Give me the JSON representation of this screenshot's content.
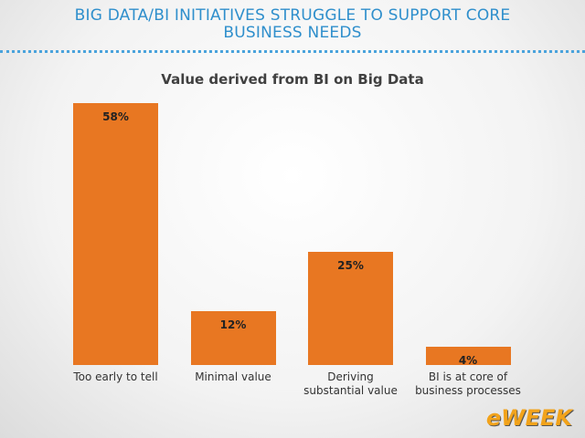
{
  "header": {
    "title": "BIG DATA/BI INITIATIVES STRUGGLE TO SUPPORT CORE BUSINESS NEEDS"
  },
  "chart_data": {
    "type": "bar",
    "title": "Value derived from BI on Big Data",
    "categories": [
      "Too early to tell",
      "Minimal value",
      "Deriving substantial value",
      "BI is at core of business processes"
    ],
    "values": [
      58,
      12,
      25,
      4
    ],
    "value_labels": [
      "58%",
      "12%",
      "25%",
      "4%"
    ],
    "color": "#e87722"
  },
  "logo": "eWEEK"
}
